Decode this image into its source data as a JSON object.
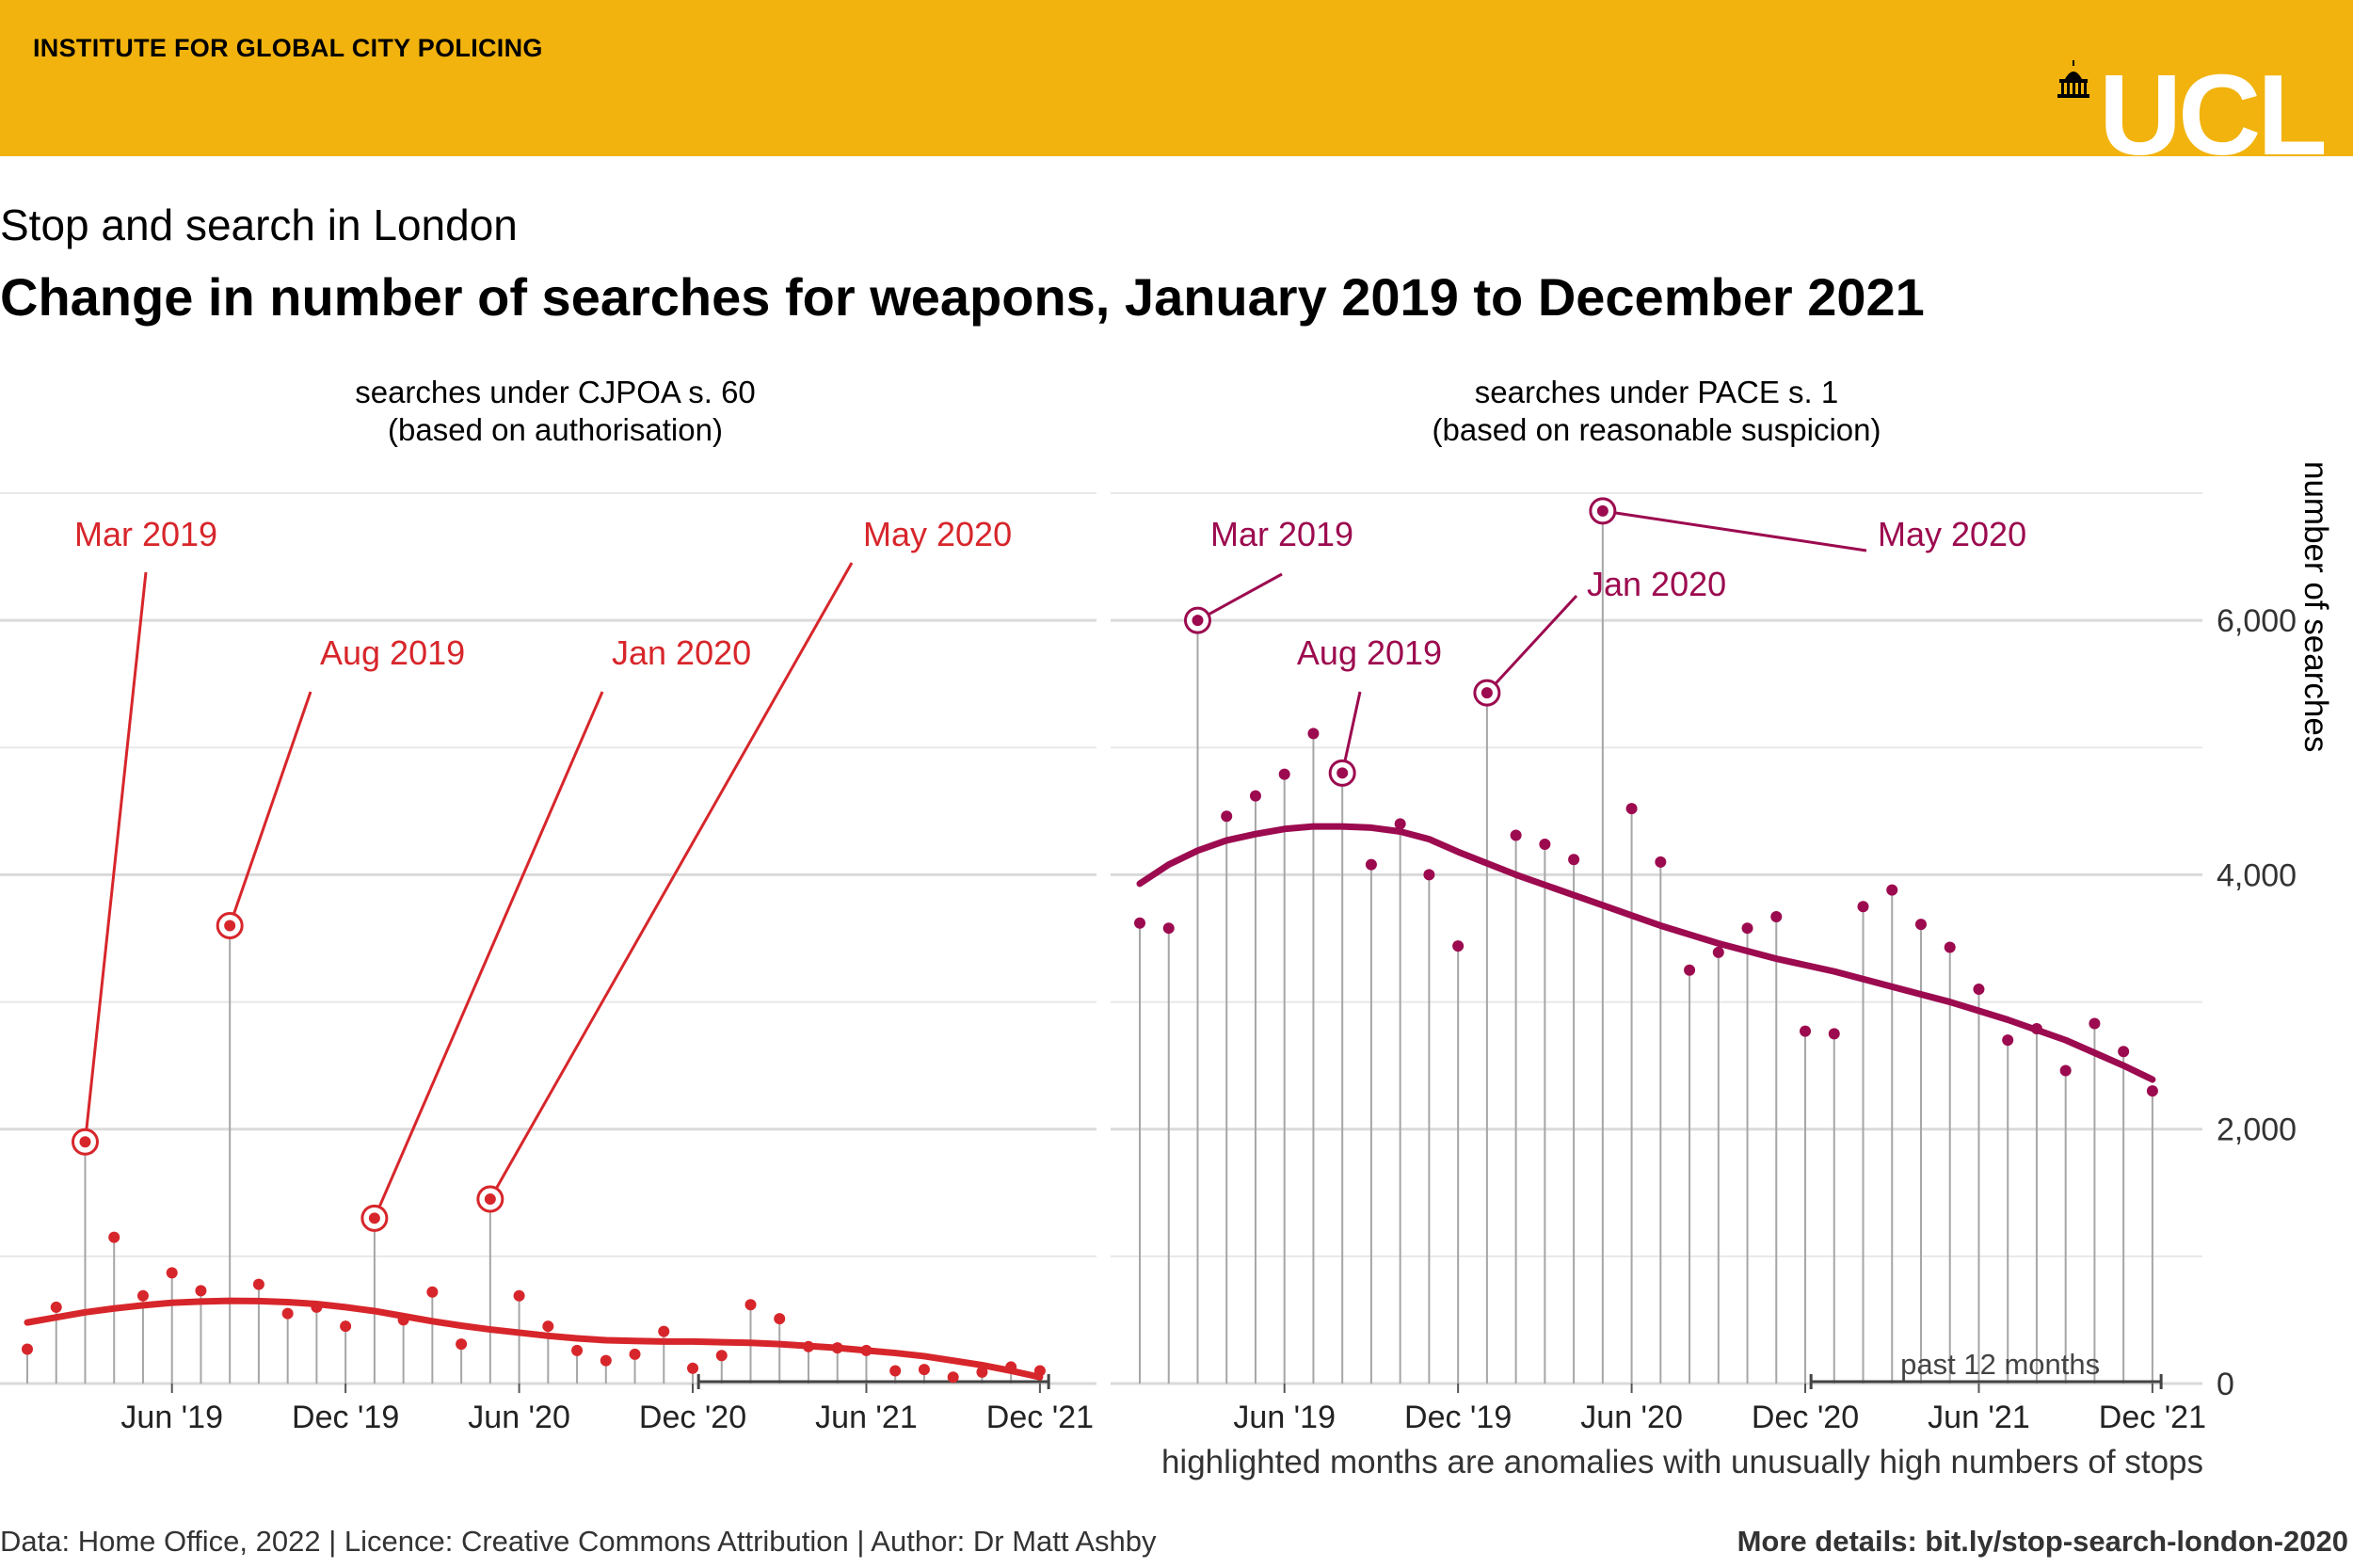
{
  "header": {
    "institute": "INSTITUTE FOR GLOBAL CITY POLICING",
    "logo_text": "UCL",
    "colors": {
      "banner": "#F2B30E",
      "logo": "#FFFFFF",
      "icon": "#000000"
    }
  },
  "subtitle": "Stop and search in London",
  "title": "Change in number of searches for weapons, January 2019 to December 2021",
  "footer": {
    "left": "Data: Home Office, 2022 | Licence: Creative Commons Attribution | Author: Dr Matt Ashby",
    "right": "More details: bit.ly/stop-search-london-2020"
  },
  "note": "highlighted months are anomalies with unusually high numbers of stops",
  "y_axis_title": "number of searches",
  "chart_data": [
    {
      "type": "scatter",
      "title_line1": "searches under CJPOA s. 60",
      "title_line2": "(based on authorisation)",
      "color": "#D7262B",
      "x_tick_labels": [
        "Jun '19",
        "Dec '19",
        "Jun '20",
        "Dec '20",
        "Jun '21",
        "Dec '21"
      ],
      "x_tick_months": [
        6,
        12,
        18,
        24,
        30,
        36
      ],
      "ylim": [
        0,
        7000
      ],
      "months": [
        "Jan 2019",
        "Feb 2019",
        "Mar 2019",
        "Apr 2019",
        "May 2019",
        "Jun 2019",
        "Jul 2019",
        "Aug 2019",
        "Sep 2019",
        "Oct 2019",
        "Nov 2019",
        "Dec 2019",
        "Jan 2020",
        "Feb 2020",
        "Mar 2020",
        "Apr 2020",
        "May 2020",
        "Jun 2020",
        "Jul 2020",
        "Aug 2020",
        "Sep 2020",
        "Oct 2020",
        "Nov 2020",
        "Dec 2020",
        "Jan 2021",
        "Feb 2021",
        "Mar 2021",
        "Apr 2021",
        "May 2021",
        "Jun 2021",
        "Jul 2021",
        "Aug 2021",
        "Sep 2021",
        "Oct 2021",
        "Nov 2021",
        "Dec 2021"
      ],
      "values": [
        270,
        600,
        1900,
        1150,
        690,
        870,
        730,
        3600,
        780,
        550,
        600,
        450,
        1300,
        500,
        720,
        310,
        1450,
        690,
        450,
        260,
        180,
        230,
        410,
        120,
        220,
        620,
        510,
        290,
        280,
        260,
        100,
        110,
        50,
        90,
        130,
        100
      ],
      "trend": [
        480,
        520,
        560,
        590,
        615,
        635,
        645,
        650,
        648,
        640,
        625,
        600,
        570,
        530,
        490,
        455,
        425,
        400,
        375,
        355,
        340,
        335,
        330,
        330,
        325,
        320,
        310,
        295,
        280,
        260,
        240,
        215,
        180,
        145,
        100,
        50
      ],
      "anomalies": [
        {
          "month": 3,
          "label": "Mar 2019"
        },
        {
          "month": 8,
          "label": "Aug 2019"
        },
        {
          "month": 13,
          "label": "Jan 2020"
        },
        {
          "month": 17,
          "label": "May 2020"
        }
      ],
      "past_12_months": true
    },
    {
      "type": "scatter",
      "title_line1": "searches under PACE s. 1",
      "title_line2": "(based on reasonable suspicion)",
      "color": "#9C0A4F",
      "x_tick_labels": [
        "Jun '19",
        "Dec '19",
        "Jun '20",
        "Dec '20",
        "Jun '21",
        "Dec '21"
      ],
      "x_tick_months": [
        6,
        12,
        18,
        24,
        30,
        36
      ],
      "y_tick_labels": [
        "0",
        "2,000",
        "4,000",
        "6,000"
      ],
      "y_ticks": [
        0,
        2000,
        4000,
        6000
      ],
      "ylim": [
        0,
        7000
      ],
      "months": [
        "Jan 2019",
        "Feb 2019",
        "Mar 2019",
        "Apr 2019",
        "May 2019",
        "Jun 2019",
        "Jul 2019",
        "Aug 2019",
        "Sep 2019",
        "Oct 2019",
        "Nov 2019",
        "Dec 2019",
        "Jan 2020",
        "Feb 2020",
        "Mar 2020",
        "Apr 2020",
        "May 2020",
        "Jun 2020",
        "Jul 2020",
        "Aug 2020",
        "Sep 2020",
        "Oct 2020",
        "Nov 2020",
        "Dec 2020",
        "Jan 2021",
        "Feb 2021",
        "Mar 2021",
        "Apr 2021",
        "May 2021",
        "Jun 2021",
        "Jul 2021",
        "Aug 2021",
        "Sep 2021",
        "Oct 2021",
        "Nov 2021",
        "Dec 2021"
      ],
      "values": [
        3620,
        3580,
        6000,
        4460,
        4620,
        4790,
        5110,
        4800,
        4080,
        4400,
        4000,
        3440,
        5430,
        4310,
        4240,
        4120,
        6860,
        4520,
        4100,
        3250,
        3390,
        3580,
        3670,
        2770,
        2750,
        3750,
        3880,
        3610,
        3430,
        3100,
        2700,
        2790,
        2460,
        2830,
        2610,
        2300
      ],
      "trend": [
        3930,
        4080,
        4190,
        4270,
        4320,
        4360,
        4380,
        4380,
        4370,
        4340,
        4280,
        4180,
        4090,
        4000,
        3920,
        3840,
        3760,
        3680,
        3600,
        3530,
        3460,
        3400,
        3340,
        3290,
        3240,
        3180,
        3120,
        3060,
        3000,
        2930,
        2860,
        2780,
        2700,
        2600,
        2500,
        2390
      ],
      "anomalies": [
        {
          "month": 3,
          "label": "Mar 2019"
        },
        {
          "month": 8,
          "label": "Aug 2019"
        },
        {
          "month": 13,
          "label": "Jan 2020"
        },
        {
          "month": 17,
          "label": "May 2020"
        }
      ],
      "past_12_months_label": "past 12 months"
    }
  ]
}
